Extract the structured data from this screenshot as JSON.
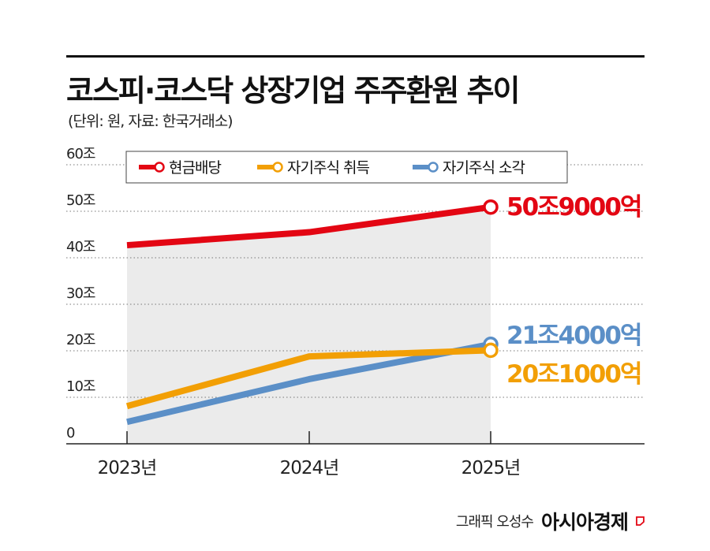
{
  "title": "코스피·코스닥 상장기업 주주환원 추이",
  "subtitle": "(단위: 원, 자료: 한국거래소)",
  "credit": {
    "author": "그래픽 오성수",
    "logo": "아시아경제"
  },
  "colors": {
    "red": "#e30613",
    "orange": "#f29f05",
    "blue": "#5b8fc7",
    "fill": "#ebebeb"
  },
  "chart_data": {
    "type": "line",
    "categories": [
      "2023년",
      "2024년",
      "2025년"
    ],
    "ylim": [
      0,
      60
    ],
    "y_ticks": [
      {
        "value": 0,
        "label": "0"
      },
      {
        "value": 10,
        "label": "10조"
      },
      {
        "value": 20,
        "label": "20조"
      },
      {
        "value": 30,
        "label": "30조"
      },
      {
        "value": 40,
        "label": "40조"
      },
      {
        "value": 50,
        "label": "50조"
      },
      {
        "value": 60,
        "label": "60조"
      }
    ],
    "grid": true,
    "legend_position": "top",
    "series": [
      {
        "name": "현금배당",
        "color": "#e30613",
        "values": [
          42.7,
          45.5,
          50.9
        ],
        "end_label": "50조9000억"
      },
      {
        "name": "자기주식 취득",
        "color": "#f29f05",
        "values": [
          8.1,
          18.8,
          20.1
        ],
        "end_label": "20조1000억"
      },
      {
        "name": "자기주식 소각",
        "color": "#5b8fc7",
        "values": [
          4.7,
          13.9,
          21.4
        ],
        "end_label": "21조4000억"
      }
    ]
  }
}
